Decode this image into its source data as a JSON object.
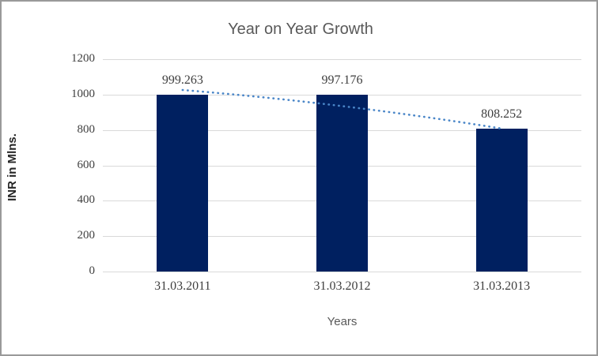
{
  "chart_data": {
    "type": "bar",
    "title": "Year on Year Growth",
    "xlabel": "Years",
    "ylabel": "INR in Mlns.",
    "categories": [
      "31.03.2011",
      "31.03.2012",
      "31.03.2013"
    ],
    "values": [
      999.263,
      997.176,
      808.252
    ],
    "data_labels": [
      "999.263",
      "997.176",
      "808.252"
    ],
    "ylim": [
      0,
      1200
    ],
    "yticks": [
      0,
      200,
      400,
      600,
      800,
      1000,
      1200
    ],
    "grid": true,
    "legend": "none",
    "trendline": {
      "type": "linear",
      "style": "dotted",
      "trend_values": [
        1026,
        935,
        808
      ]
    },
    "colors": {
      "bar": "#002060",
      "gridline": "#d9d9d9",
      "trendline": "#4a86c8",
      "title_text": "#595959",
      "tick_text": "#3f3f3f",
      "y_axis_title_text": "#262626"
    }
  }
}
